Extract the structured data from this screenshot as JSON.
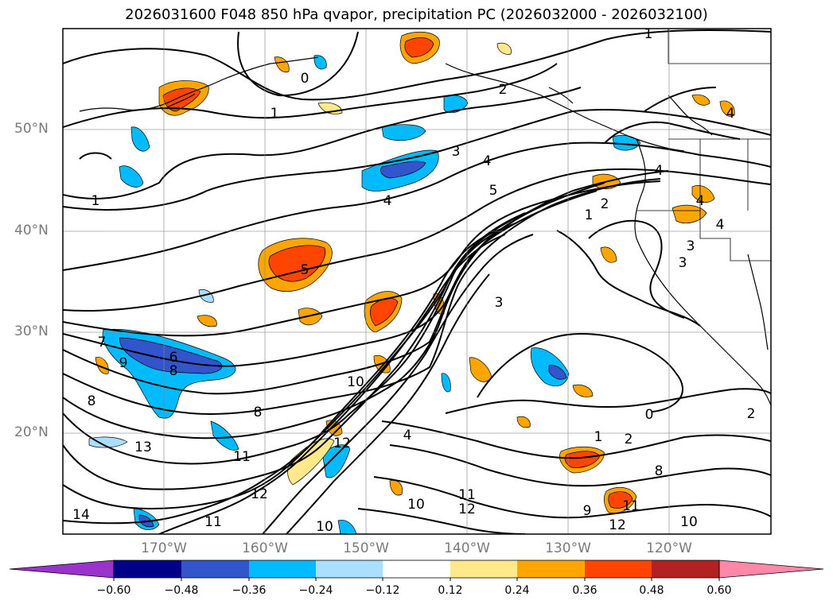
{
  "title": "2026031600 F048 850 hPa qvapor, precipitation PC (2026032000 - 2026032100)",
  "latitude_labels": [
    "50°N",
    "40°N",
    "30°N",
    "20°N"
  ],
  "longitude_labels": [
    "170°W",
    "160°W",
    "150°W",
    "140°W",
    "130°W",
    "120°W"
  ],
  "colorbar": {
    "colors": [
      "#9933cc",
      "#00008b",
      "#3355cc",
      "#00bbff",
      "#aadfff",
      "#ffffff",
      "#ffe98a",
      "#ffa500",
      "#ff4500",
      "#b22222",
      "#ff88aa"
    ],
    "tick_labels": [
      "−0.60",
      "−0.48",
      "−0.36",
      "−0.24",
      "−0.12",
      "0.12",
      "0.24",
      "0.36",
      "0.48",
      "0.60"
    ]
  },
  "contour_labels": [
    {
      "text": "1"
    },
    {
      "text": "0"
    },
    {
      "text": "1"
    },
    {
      "text": "2"
    },
    {
      "text": "1"
    },
    {
      "text": "3"
    },
    {
      "text": "4"
    },
    {
      "text": "5"
    },
    {
      "text": "4"
    },
    {
      "text": "4"
    },
    {
      "text": "5"
    },
    {
      "text": "7"
    },
    {
      "text": "6"
    },
    {
      "text": "8"
    },
    {
      "text": "9"
    },
    {
      "text": "8"
    },
    {
      "text": "10"
    },
    {
      "text": "8"
    },
    {
      "text": "11"
    },
    {
      "text": "12"
    },
    {
      "text": "13"
    },
    {
      "text": "12"
    },
    {
      "text": "14"
    },
    {
      "text": "11"
    },
    {
      "text": "10"
    },
    {
      "text": "4"
    },
    {
      "text": "10"
    },
    {
      "text": "11"
    },
    {
      "text": "12"
    },
    {
      "text": "1"
    },
    {
      "text": "2"
    },
    {
      "text": "0"
    },
    {
      "text": "2"
    },
    {
      "text": "9"
    },
    {
      "text": "12"
    },
    {
      "text": "11"
    },
    {
      "text": "10"
    },
    {
      "text": "8"
    },
    {
      "text": "4"
    },
    {
      "text": "4"
    },
    {
      "text": "4"
    },
    {
      "text": "3"
    },
    {
      "text": "2"
    },
    {
      "text": "1"
    },
    {
      "text": "3"
    },
    {
      "text": "3"
    }
  ]
}
